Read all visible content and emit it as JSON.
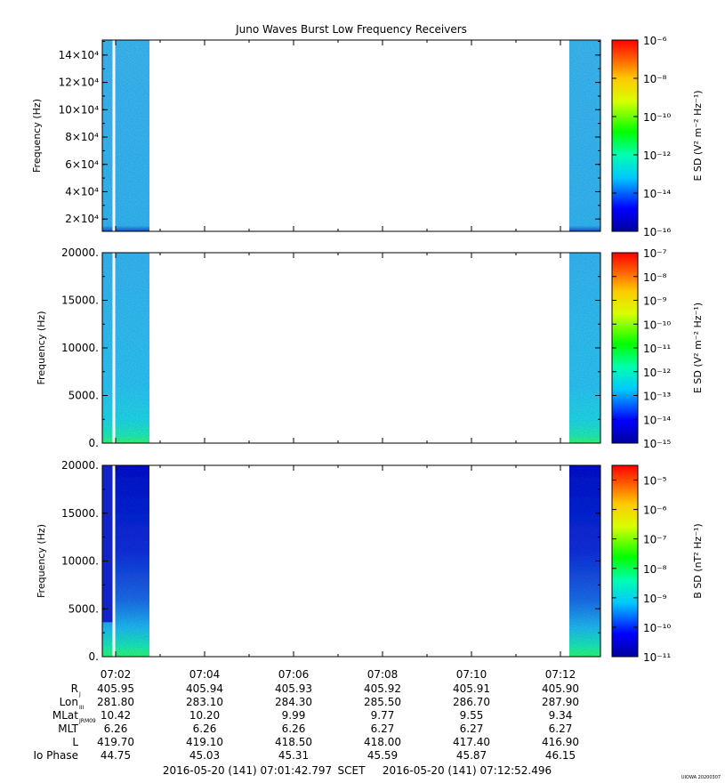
{
  "title": "Juno Waves Burst Low Frequency Receivers",
  "scet_label": "SCET",
  "start_time": "2016-05-20 (141) 07:01:42.797",
  "end_time": "2016-05-20 (141) 07:12:52.496",
  "watermark": "UIOWA 20200307",
  "colors": {
    "spectro_fill_top": "#35b8ef",
    "spectro_fill_mid": "#22c4f0",
    "spectro_base": "#1e5bd6",
    "spectro_b_fill": "#1633d4",
    "spectro_green": "#1be3a0",
    "axis": "#000000"
  },
  "chart_data": [
    {
      "type": "heatmap",
      "name": "panel-1",
      "ylabel": "Frequency (Hz)",
      "yticks": [
        {
          "value": 20000,
          "label": "2×10⁴"
        },
        {
          "value": 40000,
          "label": "4×10⁴"
        },
        {
          "value": 60000,
          "label": "6×10⁴"
        },
        {
          "value": 80000,
          "label": "8×10⁴"
        },
        {
          "value": 100000,
          "label": "10×10⁴"
        },
        {
          "value": 120000,
          "label": "12×10⁴"
        },
        {
          "value": 140000,
          "label": "14×10⁴"
        }
      ],
      "ylim": [
        11000,
        151000
      ],
      "colorbar_label": "E SD (V² m⁻² Hz⁻¹)",
      "colorbar_ticks": [
        "10⁻⁶",
        "10⁻⁸",
        "10⁻¹⁰",
        "10⁻¹²",
        "10⁻¹⁴",
        "10⁻¹⁶"
      ],
      "colorbar_range_log": [
        -16,
        -6
      ]
    },
    {
      "type": "heatmap",
      "name": "panel-2",
      "ylabel": "Frequency (Hz)",
      "yticks": [
        {
          "value": 0,
          "label": "0."
        },
        {
          "value": 5000,
          "label": "5000."
        },
        {
          "value": 10000,
          "label": "10000."
        },
        {
          "value": 15000,
          "label": "15000."
        },
        {
          "value": 20000,
          "label": "20000."
        }
      ],
      "ylim": [
        0,
        20000
      ],
      "colorbar_label": "E SD (V² m⁻² Hz⁻¹)",
      "colorbar_ticks": [
        "10⁻⁷",
        "10⁻⁸",
        "10⁻⁹",
        "10⁻¹⁰",
        "10⁻¹¹",
        "10⁻¹²",
        "10⁻¹³",
        "10⁻¹⁴",
        "10⁻¹⁵"
      ],
      "colorbar_range_log": [
        -15,
        -7
      ]
    },
    {
      "type": "heatmap",
      "name": "panel-3",
      "ylabel": "Frequency (Hz)",
      "yticks": [
        {
          "value": 0,
          "label": "0."
        },
        {
          "value": 5000,
          "label": "5000."
        },
        {
          "value": 10000,
          "label": "10000."
        },
        {
          "value": 15000,
          "label": "15000."
        },
        {
          "value": 20000,
          "label": "20000."
        }
      ],
      "ylim": [
        0,
        20000
      ],
      "colorbar_label": "B SD (nT² Hz⁻¹)",
      "colorbar_ticks": [
        "10⁻⁵",
        "10⁻⁶",
        "10⁻⁷",
        "10⁻⁸",
        "10⁻⁹",
        "10⁻¹⁰",
        "10⁻¹¹"
      ],
      "colorbar_range_log": [
        -11,
        -4.5
      ]
    }
  ],
  "time_axis": {
    "xlim_minutes": [
      1.7,
      12.9
    ],
    "ticks": [
      "07:02",
      "07:04",
      "07:06",
      "07:08",
      "07:10",
      "07:12"
    ],
    "tick_minutes": [
      2,
      4,
      6,
      8,
      10,
      12
    ],
    "data_intervals_minutes": [
      [
        1.71,
        2.76
      ],
      [
        12.2,
        12.9
      ]
    ],
    "gap_minutes": [
      1.93,
      1.99
    ]
  },
  "ephemeris": [
    {
      "label": "R",
      "sub": "J",
      "values": [
        "405.95",
        "405.94",
        "405.93",
        "405.92",
        "405.91",
        "405.90"
      ]
    },
    {
      "label": "Lon",
      "sub": "III",
      "values": [
        "281.80",
        "283.10",
        "284.30",
        "285.50",
        "286.70",
        "287.90"
      ]
    },
    {
      "label": "MLat",
      "sub": "JRM09",
      "values": [
        "10.42",
        "10.20",
        "9.99",
        "9.77",
        "9.55",
        "9.34"
      ]
    },
    {
      "label": "MLT",
      "sub": "",
      "values": [
        "6.26",
        "6.26",
        "6.26",
        "6.27",
        "6.27",
        "6.27"
      ]
    },
    {
      "label": "L",
      "sub": "",
      "values": [
        "419.70",
        "419.10",
        "418.50",
        "418.00",
        "417.40",
        "416.90"
      ]
    },
    {
      "label": "Io Phase",
      "sub": "",
      "values": [
        "44.75",
        "45.03",
        "45.31",
        "45.59",
        "45.87",
        "46.15"
      ]
    }
  ]
}
